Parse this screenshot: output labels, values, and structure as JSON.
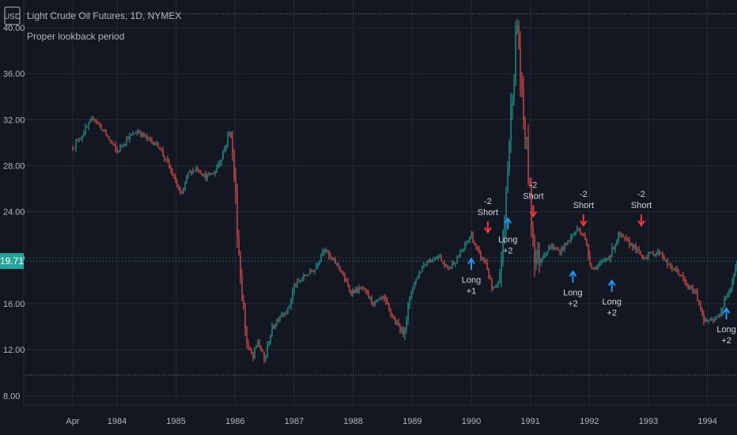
{
  "header": {
    "currency_badge": "USD",
    "symbol_title": "Light Crude Oil Futures, 1D, NYMEX",
    "indicator_title": "Proper lookback period"
  },
  "price_tag": {
    "value": "19.71"
  },
  "colors": {
    "background": "#131722",
    "grid": "#262a36",
    "text": "#b2b5be",
    "up": "#26a69a",
    "down": "#ef5350",
    "long_arrow": "#2196f3",
    "short_arrow": "#f23645",
    "price_tag": "#26a69a"
  },
  "chart_data": {
    "type": "candlestick",
    "title": "Light Crude Oil Futures, 1D, NYMEX",
    "subtitle": "Proper lookback period",
    "ylim": [
      7.2,
      42.4
    ],
    "y_ticks": [
      "8.00",
      "12.00",
      "16.00",
      "20.00",
      "24.00",
      "28.00",
      "32.00",
      "36.00",
      "40.00"
    ],
    "x_ticks": [
      "Apr",
      "1984",
      "1985",
      "1986",
      "1987",
      "1988",
      "1989",
      "1990",
      "1991",
      "1992",
      "1993",
      "1994"
    ],
    "x_tick_positions": [
      1983.25,
      1984.0,
      1985.0,
      1986.0,
      1987.0,
      1988.0,
      1989.0,
      1990.0,
      1991.0,
      1992.0,
      1993.0,
      1994.0
    ],
    "xlim": [
      1982.42,
      1994.5
    ],
    "reference_lines": [
      41.2,
      9.8
    ],
    "last_price": 19.71,
    "price_path": [
      [
        1983.25,
        29.6
      ],
      [
        1983.45,
        31.0
      ],
      [
        1983.6,
        32.2
      ],
      [
        1983.8,
        30.8
      ],
      [
        1984.0,
        29.2
      ],
      [
        1984.15,
        30.3
      ],
      [
        1984.35,
        31.0
      ],
      [
        1984.55,
        30.2
      ],
      [
        1984.7,
        29.8
      ],
      [
        1984.85,
        28.2
      ],
      [
        1985.0,
        26.5
      ],
      [
        1985.08,
        25.2
      ],
      [
        1985.2,
        27.3
      ],
      [
        1985.35,
        27.8
      ],
      [
        1985.5,
        27.0
      ],
      [
        1985.65,
        27.4
      ],
      [
        1985.8,
        29.2
      ],
      [
        1985.92,
        31.2
      ],
      [
        1986.0,
        26.0
      ],
      [
        1986.06,
        20.5
      ],
      [
        1986.12,
        16.5
      ],
      [
        1986.2,
        12.5
      ],
      [
        1986.3,
        11.2
      ],
      [
        1986.38,
        12.8
      ],
      [
        1986.5,
        11.0
      ],
      [
        1986.6,
        13.5
      ],
      [
        1986.75,
        15.0
      ],
      [
        1986.9,
        15.5
      ],
      [
        1987.0,
        17.5
      ],
      [
        1987.2,
        18.5
      ],
      [
        1987.35,
        19.0
      ],
      [
        1987.5,
        21.0
      ],
      [
        1987.6,
        20.0
      ],
      [
        1987.75,
        19.3
      ],
      [
        1987.95,
        17.0
      ],
      [
        1988.15,
        17.3
      ],
      [
        1988.35,
        16.0
      ],
      [
        1988.5,
        16.5
      ],
      [
        1988.7,
        14.5
      ],
      [
        1988.85,
        13.5
      ],
      [
        1989.0,
        17.5
      ],
      [
        1989.2,
        19.5
      ],
      [
        1989.45,
        20.2
      ],
      [
        1989.6,
        19.0
      ],
      [
        1989.8,
        20.2
      ],
      [
        1990.0,
        22.0
      ],
      [
        1990.1,
        20.5
      ],
      [
        1990.25,
        19.5
      ],
      [
        1990.35,
        17.2
      ],
      [
        1990.45,
        17.5
      ],
      [
        1990.55,
        22.0
      ],
      [
        1990.62,
        28.5
      ],
      [
        1990.7,
        35.0
      ],
      [
        1990.78,
        40.5
      ],
      [
        1990.86,
        33.0
      ],
      [
        1990.95,
        29.0
      ],
      [
        1991.0,
        24.5
      ],
      [
        1991.08,
        20.0
      ],
      [
        1991.2,
        20.2
      ],
      [
        1991.35,
        21.0
      ],
      [
        1991.5,
        20.5
      ],
      [
        1991.65,
        21.5
      ],
      [
        1991.8,
        22.5
      ],
      [
        1991.9,
        22.0
      ],
      [
        1992.05,
        19.0
      ],
      [
        1992.2,
        19.5
      ],
      [
        1992.35,
        20.2
      ],
      [
        1992.5,
        22.0
      ],
      [
        1992.6,
        21.5
      ],
      [
        1992.75,
        21.0
      ],
      [
        1992.9,
        20.0
      ],
      [
        1993.0,
        20.3
      ],
      [
        1993.2,
        20.5
      ],
      [
        1993.35,
        19.2
      ],
      [
        1993.5,
        18.8
      ],
      [
        1993.65,
        17.5
      ],
      [
        1993.8,
        17.0
      ],
      [
        1993.95,
        14.5
      ],
      [
        1994.1,
        14.5
      ],
      [
        1994.2,
        15.0
      ],
      [
        1994.35,
        17.0
      ],
      [
        1994.5,
        19.7
      ]
    ],
    "annotations": [
      {
        "kind": "long",
        "x": 1990.0,
        "price": 19.9,
        "label": [
          "Long",
          "+1"
        ]
      },
      {
        "kind": "short",
        "x": 1990.28,
        "price": 22.2,
        "label": [
          "-2",
          "Short"
        ]
      },
      {
        "kind": "long",
        "x": 1990.62,
        "price": 23.4,
        "label": [
          "Long",
          "+2"
        ]
      },
      {
        "kind": "short",
        "x": 1991.05,
        "price": 23.6,
        "label": [
          "-2",
          "Short"
        ]
      },
      {
        "kind": "long",
        "x": 1991.72,
        "price": 18.8,
        "label": [
          "Long",
          "+2"
        ]
      },
      {
        "kind": "short",
        "x": 1991.9,
        "price": 22.8,
        "label": [
          "-2",
          "Short"
        ]
      },
      {
        "kind": "long",
        "x": 1992.38,
        "price": 18.0,
        "label": [
          "Long",
          "+2"
        ]
      },
      {
        "kind": "short",
        "x": 1992.88,
        "price": 22.8,
        "label": [
          "-2",
          "Short"
        ]
      },
      {
        "kind": "long",
        "x": 1994.32,
        "price": 15.6,
        "label": [
          "Long",
          "+2"
        ]
      }
    ]
  }
}
